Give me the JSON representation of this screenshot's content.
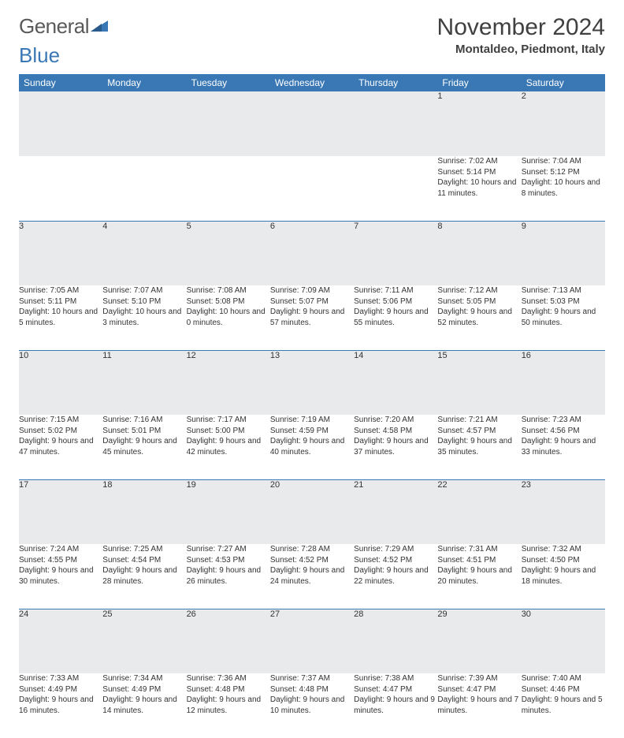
{
  "logo": {
    "text1": "General",
    "text2": "Blue"
  },
  "title": "November 2024",
  "location": "Montaldeo, Piedmont, Italy",
  "colors": {
    "header_bg": "#3a78b5",
    "header_fg": "#ffffff",
    "daynum_bg": "#e8eaec",
    "border": "#3a78b5",
    "text": "#333333",
    "logo_gray": "#5a5a5a",
    "logo_blue": "#3a78b5"
  },
  "weekdays": [
    "Sunday",
    "Monday",
    "Tuesday",
    "Wednesday",
    "Thursday",
    "Friday",
    "Saturday"
  ],
  "weeks": [
    {
      "nums": [
        "",
        "",
        "",
        "",
        "",
        "1",
        "2"
      ],
      "cells": [
        [],
        [],
        [],
        [],
        [],
        [
          "Sunrise: 7:02 AM",
          "Sunset: 5:14 PM",
          "Daylight: 10 hours and 11 minutes."
        ],
        [
          "Sunrise: 7:04 AM",
          "Sunset: 5:12 PM",
          "Daylight: 10 hours and 8 minutes."
        ]
      ]
    },
    {
      "nums": [
        "3",
        "4",
        "5",
        "6",
        "7",
        "8",
        "9"
      ],
      "cells": [
        [
          "Sunrise: 7:05 AM",
          "Sunset: 5:11 PM",
          "Daylight: 10 hours and 5 minutes."
        ],
        [
          "Sunrise: 7:07 AM",
          "Sunset: 5:10 PM",
          "Daylight: 10 hours and 3 minutes."
        ],
        [
          "Sunrise: 7:08 AM",
          "Sunset: 5:08 PM",
          "Daylight: 10 hours and 0 minutes."
        ],
        [
          "Sunrise: 7:09 AM",
          "Sunset: 5:07 PM",
          "Daylight: 9 hours and 57 minutes."
        ],
        [
          "Sunrise: 7:11 AM",
          "Sunset: 5:06 PM",
          "Daylight: 9 hours and 55 minutes."
        ],
        [
          "Sunrise: 7:12 AM",
          "Sunset: 5:05 PM",
          "Daylight: 9 hours and 52 minutes."
        ],
        [
          "Sunrise: 7:13 AM",
          "Sunset: 5:03 PM",
          "Daylight: 9 hours and 50 minutes."
        ]
      ]
    },
    {
      "nums": [
        "10",
        "11",
        "12",
        "13",
        "14",
        "15",
        "16"
      ],
      "cells": [
        [
          "Sunrise: 7:15 AM",
          "Sunset: 5:02 PM",
          "Daylight: 9 hours and 47 minutes."
        ],
        [
          "Sunrise: 7:16 AM",
          "Sunset: 5:01 PM",
          "Daylight: 9 hours and 45 minutes."
        ],
        [
          "Sunrise: 7:17 AM",
          "Sunset: 5:00 PM",
          "Daylight: 9 hours and 42 minutes."
        ],
        [
          "Sunrise: 7:19 AM",
          "Sunset: 4:59 PM",
          "Daylight: 9 hours and 40 minutes."
        ],
        [
          "Sunrise: 7:20 AM",
          "Sunset: 4:58 PM",
          "Daylight: 9 hours and 37 minutes."
        ],
        [
          "Sunrise: 7:21 AM",
          "Sunset: 4:57 PM",
          "Daylight: 9 hours and 35 minutes."
        ],
        [
          "Sunrise: 7:23 AM",
          "Sunset: 4:56 PM",
          "Daylight: 9 hours and 33 minutes."
        ]
      ]
    },
    {
      "nums": [
        "17",
        "18",
        "19",
        "20",
        "21",
        "22",
        "23"
      ],
      "cells": [
        [
          "Sunrise: 7:24 AM",
          "Sunset: 4:55 PM",
          "Daylight: 9 hours and 30 minutes."
        ],
        [
          "Sunrise: 7:25 AM",
          "Sunset: 4:54 PM",
          "Daylight: 9 hours and 28 minutes."
        ],
        [
          "Sunrise: 7:27 AM",
          "Sunset: 4:53 PM",
          "Daylight: 9 hours and 26 minutes."
        ],
        [
          "Sunrise: 7:28 AM",
          "Sunset: 4:52 PM",
          "Daylight: 9 hours and 24 minutes."
        ],
        [
          "Sunrise: 7:29 AM",
          "Sunset: 4:52 PM",
          "Daylight: 9 hours and 22 minutes."
        ],
        [
          "Sunrise: 7:31 AM",
          "Sunset: 4:51 PM",
          "Daylight: 9 hours and 20 minutes."
        ],
        [
          "Sunrise: 7:32 AM",
          "Sunset: 4:50 PM",
          "Daylight: 9 hours and 18 minutes."
        ]
      ]
    },
    {
      "nums": [
        "24",
        "25",
        "26",
        "27",
        "28",
        "29",
        "30"
      ],
      "cells": [
        [
          "Sunrise: 7:33 AM",
          "Sunset: 4:49 PM",
          "Daylight: 9 hours and 16 minutes."
        ],
        [
          "Sunrise: 7:34 AM",
          "Sunset: 4:49 PM",
          "Daylight: 9 hours and 14 minutes."
        ],
        [
          "Sunrise: 7:36 AM",
          "Sunset: 4:48 PM",
          "Daylight: 9 hours and 12 minutes."
        ],
        [
          "Sunrise: 7:37 AM",
          "Sunset: 4:48 PM",
          "Daylight: 9 hours and 10 minutes."
        ],
        [
          "Sunrise: 7:38 AM",
          "Sunset: 4:47 PM",
          "Daylight: 9 hours and 9 minutes."
        ],
        [
          "Sunrise: 7:39 AM",
          "Sunset: 4:47 PM",
          "Daylight: 9 hours and 7 minutes."
        ],
        [
          "Sunrise: 7:40 AM",
          "Sunset: 4:46 PM",
          "Daylight: 9 hours and 5 minutes."
        ]
      ]
    }
  ]
}
